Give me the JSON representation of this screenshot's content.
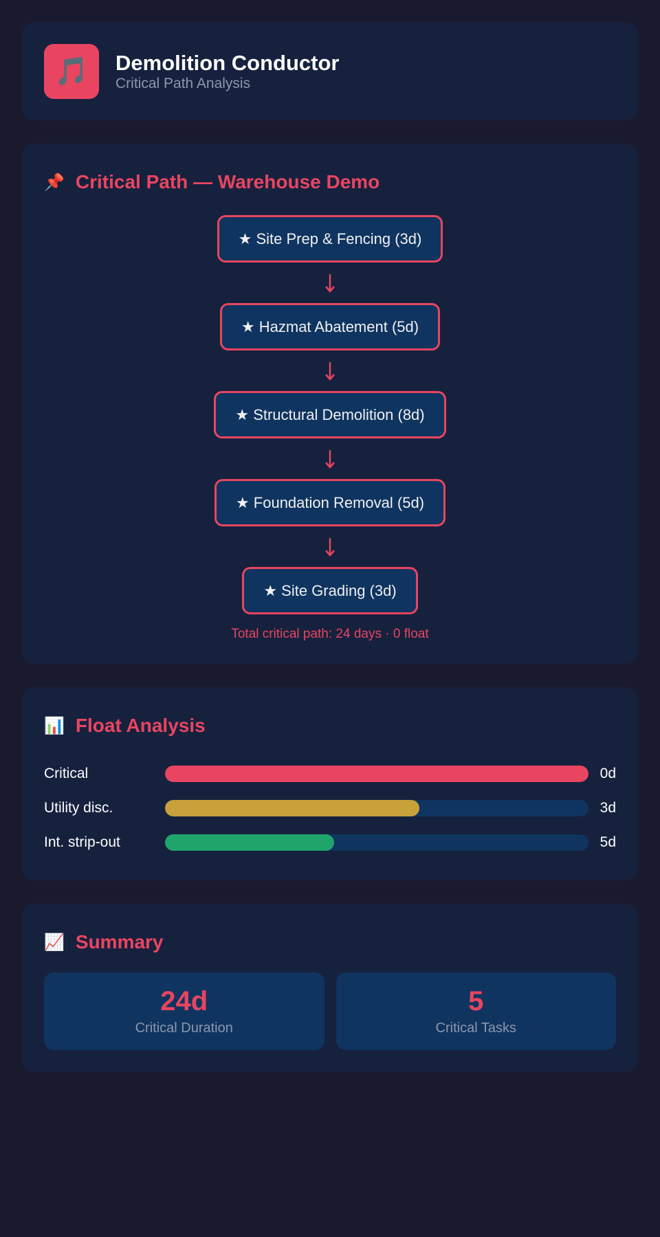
{
  "header": {
    "icon": "🎵",
    "title": "Demolition Conductor",
    "subtitle": "Critical Path Analysis"
  },
  "critical_path": {
    "icon": "📌",
    "title": "Critical Path — Warehouse Demo",
    "tasks": [
      "★ Site Prep & Fencing (3d)",
      "★ Hazmat Abatement (5d)",
      "★ Structural Demolition (8d)",
      "★ Foundation Removal (5d)",
      "★ Site Grading (3d)"
    ],
    "total": "Total critical path: 24 days · 0 float"
  },
  "float_analysis": {
    "icon": "📊",
    "title": "Float Analysis",
    "rows": [
      {
        "label": "Critical",
        "fill": 100,
        "color": "#e94560",
        "value": "0d"
      },
      {
        "label": "Utility disc.",
        "fill": 60,
        "color": "#c9a13b",
        "value": "3d"
      },
      {
        "label": "Int. strip-out",
        "fill": 40,
        "color": "#1fa56b",
        "value": "5d"
      }
    ]
  },
  "summary": {
    "icon": "📈",
    "title": "Summary",
    "stats": [
      {
        "value": "24d",
        "label": "Critical Duration"
      },
      {
        "value": "5",
        "label": "Critical Tasks"
      }
    ]
  }
}
